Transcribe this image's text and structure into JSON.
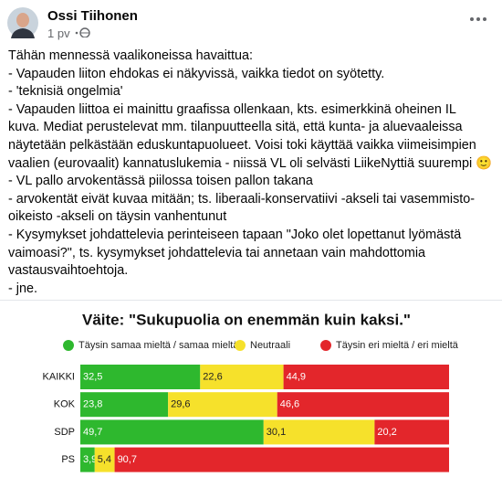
{
  "post": {
    "author": "Ossi Tiihonen",
    "time": "1 pv",
    "text_lines": [
      "Tähän mennessä vaalikoneissa havaittua:",
      "- Vapauden liiton ehdokas ei näkyvissä, vaikka tiedot on syötetty.",
      "- 'teknisiä ongelmia'",
      "- Vapauden liittoa ei mainittu graafissa ollenkaan, kts. esimerkkinä oheinen IL",
      "kuva. Mediat perustelevat mm. tilanpuutteella sitä, että kunta- ja aluevaaleissa",
      "näytetään pelkästään eduskuntapuolueet. Voisi toki käyttää vaikka viimeisimpien",
      "vaalien (eurovaalit) kannatuslukemia - niissä VL oli selvästi LiikeNyttiä suurempi 🙂",
      "- VL pallo arvokentässä piilossa toisen pallon takana",
      "- arvokentät eivät kuvaa mitään; ts. liberaali-konservatiivi -akseli tai vasemmisto-",
      "oikeisto -akseli on täysin vanhentunut",
      "- Kysymykset johdattelevia perinteiseen tapaan \"Joko olet lopettanut lyömästä",
      "vaimoasi?\", ts. kysymykset johdattelevia tai annetaan vain mahdottomia",
      "vastausvaihtoehtoja.",
      "- jne."
    ]
  },
  "chart_data": {
    "type": "stacked-bar-horizontal",
    "title": "Väite: \"Sukupuolia on enemmän kuin kaksi.\"",
    "categories": [
      "KAIKKI",
      "KOK",
      "SDP",
      "PS"
    ],
    "xlim": [
      0,
      100
    ],
    "series": [
      {
        "name": "Täysin samaa mieltä / samaa mieltä",
        "color": "#2eb82e",
        "label_color": "#ffffff",
        "values": [
          32.5,
          23.8,
          49.7,
          3.9
        ],
        "value_labels": [
          "32,5",
          "23,8",
          "49,7",
          "3,9"
        ]
      },
      {
        "name": "Neutraali",
        "color": "#f6e12b",
        "label_color": "#222222",
        "values": [
          22.6,
          29.6,
          30.1,
          5.4
        ],
        "value_labels": [
          "22,6",
          "29,6",
          "30,1",
          "5,4"
        ]
      },
      {
        "name": "Täysin eri mieltä / eri mieltä",
        "color": "#e3262b",
        "label_color": "#ffffff",
        "values": [
          44.9,
          46.6,
          20.2,
          90.7
        ],
        "value_labels": [
          "44,9",
          "46,6",
          "20,2",
          "90,7"
        ]
      }
    ]
  }
}
